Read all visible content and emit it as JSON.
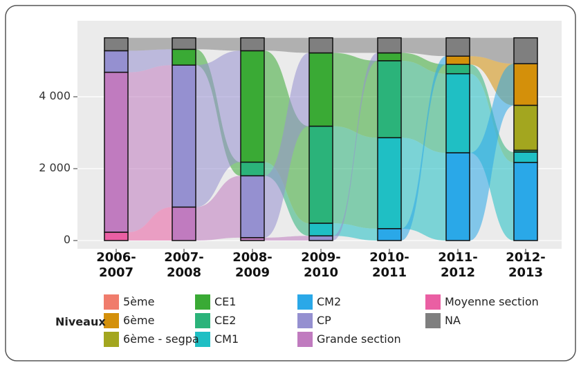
{
  "chart_data": {
    "type": "alluvial",
    "legend_title": "Niveaux",
    "categories": [
      "2006-\n2007",
      "2007-\n2008",
      "2008-\n2009",
      "2009-\n2010",
      "2010-\n2011",
      "2011-\n2012",
      "2012-\n2013"
    ],
    "series": [
      {
        "name": "5ème",
        "color": "#f07c6c",
        "values": [
          null,
          null,
          null,
          null,
          null,
          null,
          null
        ]
      },
      {
        "name": "6ème",
        "color": "#d4900a",
        "values": [
          null,
          null,
          null,
          null,
          null,
          230,
          1160
        ]
      },
      {
        "name": "6ème - segpa",
        "color": "#a3a61f",
        "values": [
          null,
          null,
          null,
          null,
          null,
          null,
          1250
        ]
      },
      {
        "name": "CE1",
        "color": "#3aaa35",
        "values": [
          null,
          440,
          3100,
          2040,
          220,
          null,
          null
        ]
      },
      {
        "name": "CE2",
        "color": "#2bb37a",
        "values": [
          null,
          null,
          380,
          2700,
          2140,
          260,
          50
        ]
      },
      {
        "name": "CM1",
        "color": "#1fbfc4",
        "values": [
          null,
          null,
          null,
          350,
          2530,
          2200,
          290
        ]
      },
      {
        "name": "CM2",
        "color": "#2aa8e8",
        "values": [
          null,
          null,
          null,
          null,
          330,
          2440,
          2170
        ]
      },
      {
        "name": "CP",
        "color": "#9590d0",
        "values": [
          600,
          3950,
          1720,
          130,
          null,
          null,
          null
        ]
      },
      {
        "name": "Grande section",
        "color": "#c07bbf",
        "values": [
          4450,
          930,
          80,
          null,
          null,
          null,
          null
        ]
      },
      {
        "name": "Moyenne section",
        "color": "#ea5fa3",
        "values": [
          230,
          null,
          null,
          null,
          null,
          null,
          null
        ]
      },
      {
        "name": "NA",
        "color": "#7f7f7f",
        "values": [
          360,
          320,
          360,
          420,
          420,
          510,
          720
        ]
      }
    ],
    "ylim": [
      -230,
      6115
    ],
    "yticks": [
      0,
      {
        "value": 2000,
        "label": "2 000"
      },
      {
        "value": 4000,
        "label": "4 000"
      }
    ],
    "grid": true
  }
}
